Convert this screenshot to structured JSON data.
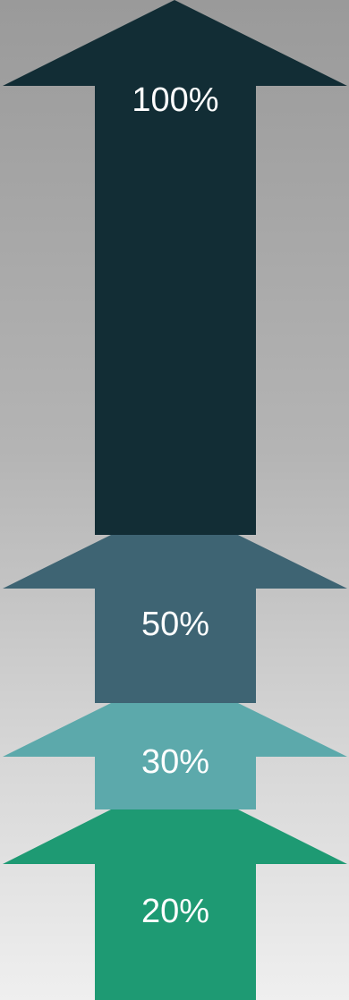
{
  "diagram": {
    "arrows": [
      {
        "id": "arrow-100",
        "label": "100%",
        "value": 100,
        "color": "#122d35"
      },
      {
        "id": "arrow-50",
        "label": "50%",
        "value": 50,
        "color": "#3e6473"
      },
      {
        "id": "arrow-30",
        "label": "30%",
        "value": 30,
        "color": "#5ca9ab"
      },
      {
        "id": "arrow-20",
        "label": "20%",
        "value": 20,
        "color": "#1e9a73"
      }
    ]
  }
}
